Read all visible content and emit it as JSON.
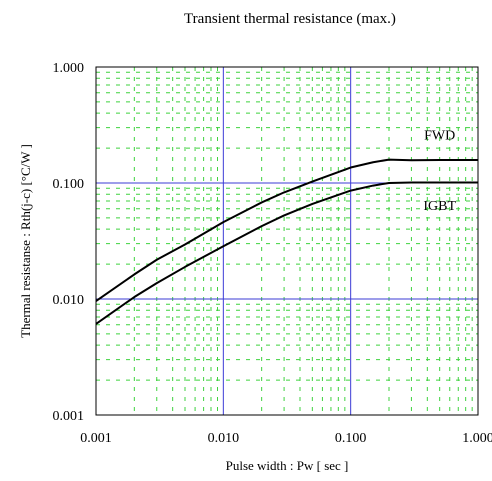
{
  "chart_data": {
    "type": "line",
    "title": "Transient thermal resistance (max.)",
    "xlabel": "Pulse width : Pw [ sec ]",
    "ylabel": "Thermal resistanse : Rth(j-c) [°C/W ]",
    "x_scale": "log",
    "y_scale": "log",
    "xlim": [
      0.001,
      1.0
    ],
    "ylim": [
      0.001,
      1.0
    ],
    "x_ticks": [
      "0.001",
      "0.010",
      "0.100",
      "1.000"
    ],
    "y_ticks": [
      "0.001",
      "0.010",
      "0.100",
      "1.000"
    ],
    "grid": true,
    "legend": "inline labels",
    "colors": {
      "major_grid": "#3b3bd6",
      "minor_grid": "#3fd23f",
      "curves": "#000000"
    },
    "series": [
      {
        "name": "FWD",
        "x": [
          0.001,
          0.002,
          0.003,
          0.005,
          0.01,
          0.02,
          0.03,
          0.05,
          0.1,
          0.15,
          0.2,
          0.3,
          0.5,
          1.0
        ],
        "y": [
          0.0096,
          0.0163,
          0.0218,
          0.0295,
          0.046,
          0.068,
          0.083,
          0.103,
          0.136,
          0.151,
          0.159,
          0.157,
          0.158,
          0.158
        ]
      },
      {
        "name": "IGBT",
        "x": [
          0.001,
          0.002,
          0.003,
          0.005,
          0.01,
          0.02,
          0.03,
          0.05,
          0.1,
          0.15,
          0.2,
          0.3,
          0.5,
          1.0
        ],
        "y": [
          0.0061,
          0.0104,
          0.0137,
          0.0189,
          0.0285,
          0.0425,
          0.0525,
          0.066,
          0.086,
          0.095,
          0.1,
          0.101,
          0.101,
          0.101
        ]
      }
    ]
  }
}
